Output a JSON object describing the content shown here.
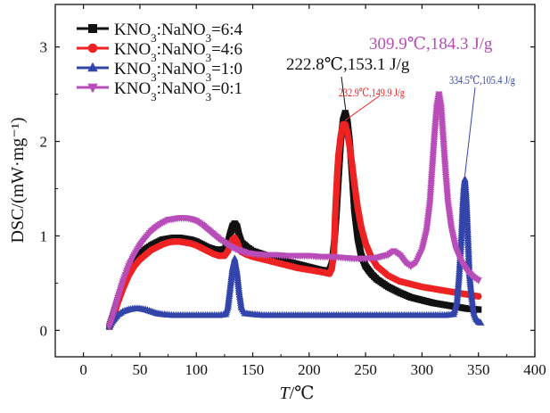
{
  "chart_data": {
    "type": "line",
    "title": "",
    "xlabel_var": "T",
    "xlabel_unit": "/℃",
    "ylabel": "DSC/(mW·mg⁻¹)",
    "xlim": [
      -25,
      400
    ],
    "ylim": [
      -0.28,
      3.45
    ],
    "xticks": [
      0,
      50,
      100,
      150,
      200,
      250,
      300,
      350,
      400
    ],
    "yticks": [
      0,
      1,
      2,
      3
    ],
    "legend_position": "top-left",
    "colors": {
      "s1": "#111111",
      "s2": "#ee2222",
      "s3": "#3344aa",
      "s4": "#b84cb8",
      "axis": "#111111"
    },
    "series": [
      {
        "name": "KNO3:NaNO3=6:4",
        "legend_parts": [
          "KNO",
          "3",
          ":NaNO",
          "3",
          "=6:4"
        ],
        "color": "#111111",
        "marker": "square",
        "points": [
          [
            23,
            0.04
          ],
          [
            26,
            0.15
          ],
          [
            30,
            0.3
          ],
          [
            35,
            0.48
          ],
          [
            40,
            0.62
          ],
          [
            45,
            0.72
          ],
          [
            50,
            0.8
          ],
          [
            55,
            0.86
          ],
          [
            60,
            0.9
          ],
          [
            65,
            0.93
          ],
          [
            70,
            0.96
          ],
          [
            75,
            0.97
          ],
          [
            80,
            0.98
          ],
          [
            85,
            0.98
          ],
          [
            90,
            0.97
          ],
          [
            95,
            0.96
          ],
          [
            100,
            0.94
          ],
          [
            105,
            0.91
          ],
          [
            110,
            0.88
          ],
          [
            115,
            0.86
          ],
          [
            120,
            0.85
          ],
          [
            125,
            0.86
          ],
          [
            128,
            0.92
          ],
          [
            130,
            1.02
          ],
          [
            132,
            1.1
          ],
          [
            134,
            1.13
          ],
          [
            136,
            1.1
          ],
          [
            138,
            1.0
          ],
          [
            140,
            0.93
          ],
          [
            145,
            0.88
          ],
          [
            150,
            0.84
          ],
          [
            160,
            0.8
          ],
          [
            170,
            0.76
          ],
          [
            180,
            0.73
          ],
          [
            190,
            0.7
          ],
          [
            200,
            0.67
          ],
          [
            210,
            0.64
          ],
          [
            218,
            0.63
          ],
          [
            220,
            0.7
          ],
          [
            222,
            0.9
          ],
          [
            224,
            1.2
          ],
          [
            226,
            1.6
          ],
          [
            228,
            2.0
          ],
          [
            230,
            2.22
          ],
          [
            232,
            2.3
          ],
          [
            234,
            2.2
          ],
          [
            236,
            1.98
          ],
          [
            238,
            1.65
          ],
          [
            240,
            1.28
          ],
          [
            243,
            0.98
          ],
          [
            246,
            0.8
          ],
          [
            250,
            0.68
          ],
          [
            255,
            0.6
          ],
          [
            260,
            0.54
          ],
          [
            270,
            0.46
          ],
          [
            280,
            0.4
          ],
          [
            290,
            0.35
          ],
          [
            300,
            0.32
          ],
          [
            310,
            0.29
          ],
          [
            320,
            0.27
          ],
          [
            330,
            0.25
          ],
          [
            340,
            0.23
          ],
          [
            350,
            0.22
          ]
        ]
      },
      {
        "name": "KNO3:NaNO3=4:6",
        "legend_parts": [
          "KNO",
          "3",
          ":NaNO",
          "3",
          "=4:6"
        ],
        "color": "#ee2222",
        "marker": "circle",
        "points": [
          [
            23,
            0.04
          ],
          [
            26,
            0.14
          ],
          [
            30,
            0.28
          ],
          [
            35,
            0.44
          ],
          [
            40,
            0.58
          ],
          [
            45,
            0.68
          ],
          [
            50,
            0.75
          ],
          [
            55,
            0.8
          ],
          [
            60,
            0.85
          ],
          [
            65,
            0.88
          ],
          [
            70,
            0.91
          ],
          [
            75,
            0.93
          ],
          [
            80,
            0.94
          ],
          [
            85,
            0.94
          ],
          [
            90,
            0.93
          ],
          [
            95,
            0.92
          ],
          [
            100,
            0.9
          ],
          [
            105,
            0.87
          ],
          [
            110,
            0.84
          ],
          [
            115,
            0.81
          ],
          [
            120,
            0.79
          ],
          [
            125,
            0.79
          ],
          [
            128,
            0.84
          ],
          [
            130,
            0.9
          ],
          [
            132,
            0.96
          ],
          [
            134,
            0.98
          ],
          [
            136,
            0.94
          ],
          [
            138,
            0.87
          ],
          [
            140,
            0.83
          ],
          [
            145,
            0.8
          ],
          [
            150,
            0.78
          ],
          [
            160,
            0.75
          ],
          [
            170,
            0.72
          ],
          [
            180,
            0.69
          ],
          [
            190,
            0.66
          ],
          [
            200,
            0.64
          ],
          [
            210,
            0.62
          ],
          [
            218,
            0.6
          ],
          [
            220,
            0.65
          ],
          [
            222,
            0.82
          ],
          [
            223,
            1.2
          ],
          [
            224,
            1.45
          ],
          [
            225,
            1.68
          ],
          [
            226,
            1.86
          ],
          [
            228,
            2.06
          ],
          [
            230,
            2.18
          ],
          [
            232,
            2.18
          ],
          [
            234,
            2.08
          ],
          [
            236,
            1.94
          ],
          [
            238,
            1.76
          ],
          [
            240,
            1.56
          ],
          [
            243,
            1.3
          ],
          [
            246,
            1.1
          ],
          [
            250,
            0.92
          ],
          [
            255,
            0.78
          ],
          [
            260,
            0.68
          ],
          [
            270,
            0.58
          ],
          [
            280,
            0.52
          ],
          [
            290,
            0.49
          ],
          [
            300,
            0.46
          ],
          [
            310,
            0.44
          ],
          [
            320,
            0.42
          ],
          [
            330,
            0.4
          ],
          [
            340,
            0.38
          ],
          [
            350,
            0.36
          ]
        ]
      },
      {
        "name": "KNO3:NaNO3=1:0",
        "legend_parts": [
          "KNO",
          "3",
          ":NaNO",
          "3",
          "=1:0"
        ],
        "color": "#3344aa",
        "marker": "triangle-up",
        "points": [
          [
            23,
            0.04
          ],
          [
            26,
            0.1
          ],
          [
            30,
            0.16
          ],
          [
            35,
            0.2
          ],
          [
            40,
            0.22
          ],
          [
            45,
            0.23
          ],
          [
            50,
            0.23
          ],
          [
            55,
            0.22
          ],
          [
            60,
            0.2
          ],
          [
            65,
            0.18
          ],
          [
            70,
            0.17
          ],
          [
            80,
            0.16
          ],
          [
            90,
            0.16
          ],
          [
            100,
            0.16
          ],
          [
            110,
            0.16
          ],
          [
            120,
            0.16
          ],
          [
            126,
            0.17
          ],
          [
            128,
            0.25
          ],
          [
            130,
            0.45
          ],
          [
            132,
            0.65
          ],
          [
            134,
            0.76
          ],
          [
            136,
            0.62
          ],
          [
            138,
            0.4
          ],
          [
            140,
            0.24
          ],
          [
            143,
            0.18
          ],
          [
            150,
            0.17
          ],
          [
            160,
            0.16
          ],
          [
            180,
            0.16
          ],
          [
            200,
            0.16
          ],
          [
            220,
            0.16
          ],
          [
            240,
            0.16
          ],
          [
            260,
            0.16
          ],
          [
            280,
            0.16
          ],
          [
            300,
            0.16
          ],
          [
            320,
            0.16
          ],
          [
            328,
            0.17
          ],
          [
            331,
            0.3
          ],
          [
            333,
            0.6
          ],
          [
            335,
            1.0
          ],
          [
            336,
            1.3
          ],
          [
            337,
            1.5
          ],
          [
            338,
            1.6
          ],
          [
            339,
            1.45
          ],
          [
            340,
            1.2
          ],
          [
            341,
            0.9
          ],
          [
            342,
            0.6
          ],
          [
            344,
            0.35
          ],
          [
            346,
            0.18
          ],
          [
            348,
            0.12
          ],
          [
            350,
            0.09
          ],
          [
            352,
            0.08
          ]
        ]
      },
      {
        "name": "KNO3:NaNO3=0:1",
        "legend_parts": [
          "KNO",
          "3",
          ":NaNO",
          "3",
          "=0:1"
        ],
        "color": "#b84cb8",
        "marker": "triangle-down",
        "points": [
          [
            23,
            0.04
          ],
          [
            26,
            0.15
          ],
          [
            30,
            0.32
          ],
          [
            35,
            0.52
          ],
          [
            40,
            0.68
          ],
          [
            45,
            0.8
          ],
          [
            50,
            0.9
          ],
          [
            55,
            0.98
          ],
          [
            60,
            1.05
          ],
          [
            65,
            1.1
          ],
          [
            70,
            1.14
          ],
          [
            75,
            1.17
          ],
          [
            80,
            1.18
          ],
          [
            85,
            1.19
          ],
          [
            90,
            1.19
          ],
          [
            95,
            1.18
          ],
          [
            100,
            1.16
          ],
          [
            105,
            1.12
          ],
          [
            110,
            1.07
          ],
          [
            115,
            1.02
          ],
          [
            120,
            0.97
          ],
          [
            125,
            0.93
          ],
          [
            130,
            0.89
          ],
          [
            135,
            0.86
          ],
          [
            140,
            0.84
          ],
          [
            145,
            0.82
          ],
          [
            150,
            0.81
          ],
          [
            160,
            0.8
          ],
          [
            170,
            0.8
          ],
          [
            180,
            0.79
          ],
          [
            190,
            0.79
          ],
          [
            200,
            0.79
          ],
          [
            210,
            0.78
          ],
          [
            220,
            0.78
          ],
          [
            230,
            0.77
          ],
          [
            240,
            0.76
          ],
          [
            250,
            0.76
          ],
          [
            260,
            0.77
          ],
          [
            270,
            0.8
          ],
          [
            275,
            0.84
          ],
          [
            280,
            0.8
          ],
          [
            285,
            0.72
          ],
          [
            290,
            0.68
          ],
          [
            295,
            0.72
          ],
          [
            300,
            0.85
          ],
          [
            304,
            1.05
          ],
          [
            307,
            1.35
          ],
          [
            309,
            1.7
          ],
          [
            311,
            2.05
          ],
          [
            313,
            2.35
          ],
          [
            315,
            2.5
          ],
          [
            317,
            2.35
          ],
          [
            319,
            2.0
          ],
          [
            321,
            1.65
          ],
          [
            323,
            1.35
          ],
          [
            326,
            1.08
          ],
          [
            330,
            0.86
          ],
          [
            335,
            0.72
          ],
          [
            340,
            0.63
          ],
          [
            345,
            0.57
          ],
          [
            350,
            0.53
          ]
        ]
      }
    ],
    "annotations": [
      {
        "text": "222.8℃,153.1 J/g",
        "color": "#111111",
        "size": "large"
      },
      {
        "text": "232.9℃,149.9 J/g",
        "color": "#ee2222",
        "size": "small"
      },
      {
        "text": "309.9℃,184.3 J/g",
        "color": "#b84cb8",
        "size": "large"
      },
      {
        "text": "334.5℃,105.4 J/g",
        "color": "#3344aa",
        "size": "small"
      }
    ]
  }
}
